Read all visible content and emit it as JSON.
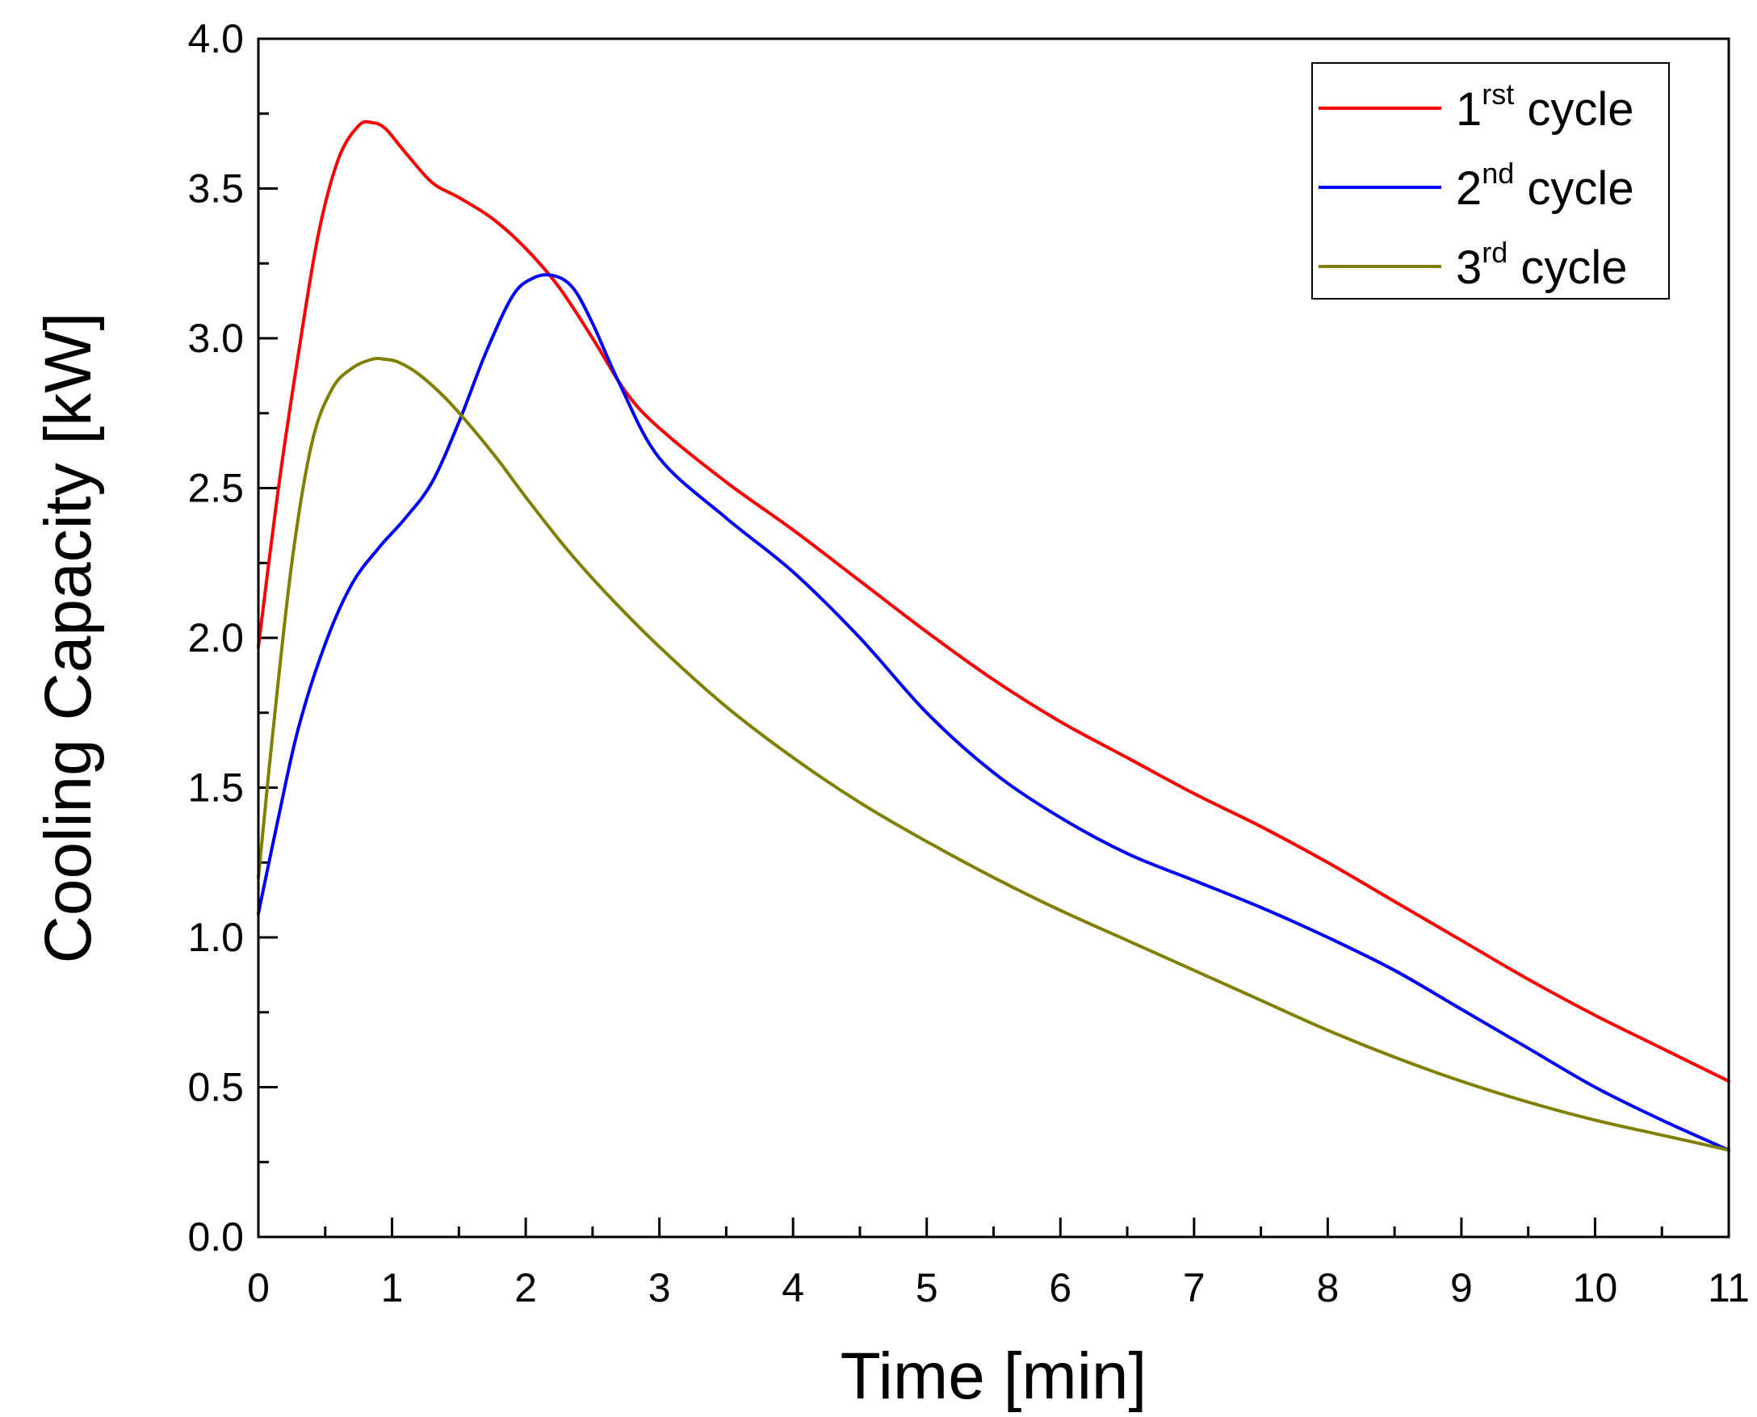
{
  "chart_data": {
    "type": "line",
    "title": "",
    "xlabel": "Time [min]",
    "ylabel": "Cooling Capacity [kW]",
    "xlim": [
      0,
      11
    ],
    "ylim": [
      0,
      4.0
    ],
    "xticks": [
      "0",
      "1",
      "2",
      "3",
      "4",
      "5",
      "6",
      "7",
      "8",
      "9",
      "10",
      "11"
    ],
    "yticks": [
      "0.0",
      "0.5",
      "1.0",
      "1.5",
      "2.0",
      "2.5",
      "3.0",
      "3.5",
      "4.0"
    ],
    "grid": false,
    "legend_position": "top-right",
    "series": [
      {
        "name": "1rst cycle",
        "legend_main": "1",
        "legend_sup": "rst",
        "legend_rest": " cycle",
        "color": "#ff0000",
        "x": [
          0,
          0.15,
          0.3,
          0.45,
          0.6,
          0.75,
          0.85,
          0.95,
          1.1,
          1.3,
          1.5,
          1.75,
          2.0,
          2.25,
          2.5,
          2.75,
          3.0,
          3.5,
          4.0,
          4.5,
          5.0,
          5.5,
          6.0,
          6.5,
          7.0,
          7.5,
          8.0,
          8.5,
          9.0,
          9.5,
          10.0,
          10.5,
          11.0
        ],
        "y": [
          1.97,
          2.5,
          2.95,
          3.35,
          3.6,
          3.71,
          3.72,
          3.7,
          3.62,
          3.52,
          3.47,
          3.4,
          3.3,
          3.17,
          3.0,
          2.82,
          2.7,
          2.52,
          2.36,
          2.19,
          2.02,
          1.86,
          1.72,
          1.6,
          1.48,
          1.37,
          1.25,
          1.12,
          0.99,
          0.86,
          0.74,
          0.63,
          0.52
        ]
      },
      {
        "name": "2nd cycle",
        "legend_main": "2",
        "legend_sup": "nd",
        "legend_rest": " cycle",
        "color": "#0000ff",
        "x": [
          0,
          0.15,
          0.3,
          0.5,
          0.7,
          0.9,
          1.1,
          1.3,
          1.5,
          1.7,
          1.9,
          2.05,
          2.2,
          2.35,
          2.5,
          2.7,
          3.0,
          3.5,
          4.0,
          4.5,
          5.0,
          5.5,
          6.0,
          6.5,
          7.0,
          7.5,
          8.0,
          8.5,
          9.0,
          9.5,
          10.0,
          10.5,
          11.0
        ],
        "y": [
          1.08,
          1.4,
          1.7,
          1.98,
          2.18,
          2.3,
          2.4,
          2.52,
          2.72,
          2.95,
          3.14,
          3.2,
          3.21,
          3.17,
          3.05,
          2.85,
          2.6,
          2.4,
          2.22,
          2.0,
          1.75,
          1.55,
          1.4,
          1.28,
          1.19,
          1.1,
          1.0,
          0.89,
          0.76,
          0.63,
          0.5,
          0.39,
          0.29
        ]
      },
      {
        "name": "3rd cycle",
        "legend_main": "3",
        "legend_sup": "rd",
        "legend_rest": " cycle",
        "color": "#808000",
        "x": [
          0,
          0.1,
          0.25,
          0.4,
          0.55,
          0.7,
          0.85,
          0.95,
          1.05,
          1.2,
          1.4,
          1.6,
          1.8,
          2.0,
          2.3,
          2.6,
          3.0,
          3.5,
          4.0,
          4.5,
          5.0,
          5.5,
          6.0,
          6.5,
          7.0,
          7.5,
          8.0,
          8.5,
          9.0,
          9.5,
          10.0,
          10.5,
          11.0
        ],
        "y": [
          1.2,
          1.65,
          2.25,
          2.65,
          2.83,
          2.9,
          2.93,
          2.93,
          2.92,
          2.88,
          2.8,
          2.7,
          2.59,
          2.47,
          2.3,
          2.15,
          1.97,
          1.77,
          1.6,
          1.45,
          1.32,
          1.2,
          1.09,
          0.99,
          0.89,
          0.79,
          0.69,
          0.6,
          0.52,
          0.45,
          0.39,
          0.34,
          0.29
        ]
      }
    ]
  }
}
